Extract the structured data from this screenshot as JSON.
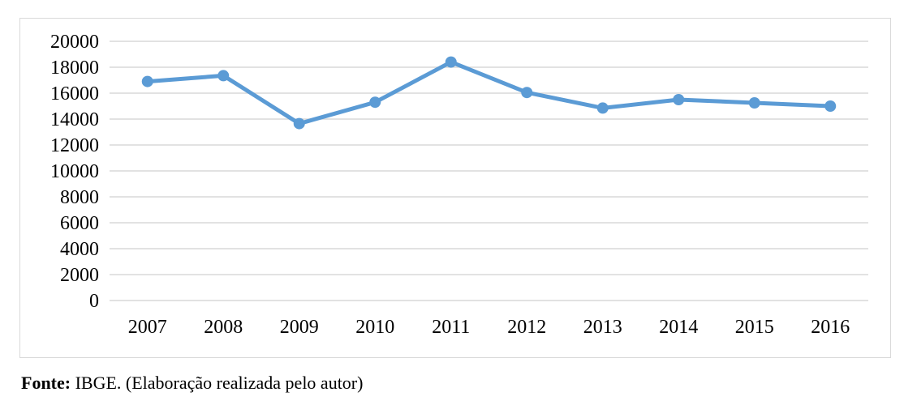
{
  "chart_data": {
    "type": "line",
    "title": "",
    "xlabel": "",
    "ylabel": "",
    "categories": [
      "2007",
      "2008",
      "2009",
      "2010",
      "2011",
      "2012",
      "2013",
      "2014",
      "2015",
      "2016"
    ],
    "series": [
      {
        "values": [
          16900,
          17350,
          13650,
          15300,
          18400,
          16050,
          14850,
          15500,
          15250,
          15000
        ]
      }
    ],
    "ylim": [
      0,
      20000
    ],
    "yticks": [
      0,
      2000,
      4000,
      6000,
      8000,
      10000,
      12000,
      14000,
      16000,
      18000,
      20000
    ],
    "grid": true,
    "legend": "none",
    "line_color": "#5b9bd5",
    "grid_color": "#d9d9d9"
  },
  "source": {
    "label": "Fonte:",
    "text": " IBGE. (Elaboração realizada pelo autor)"
  }
}
